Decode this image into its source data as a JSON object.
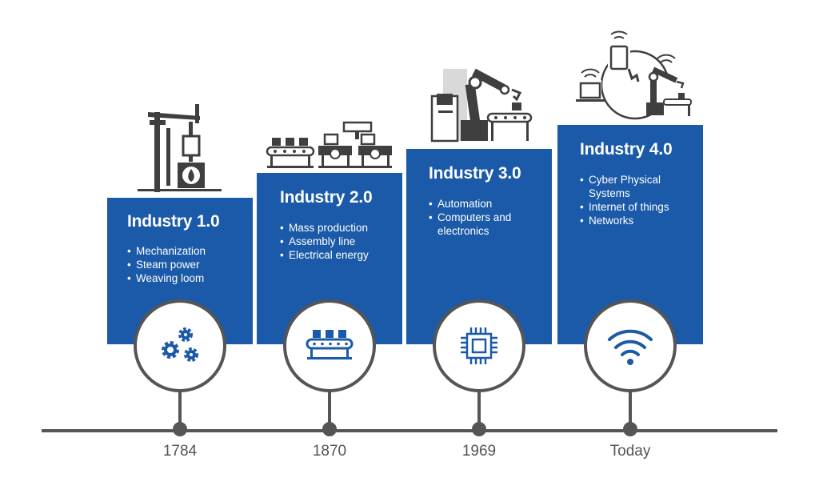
{
  "stages": [
    {
      "title": "Industry 1.0",
      "bullets": [
        "Mechanization",
        "Steam power",
        "Weaving loom"
      ],
      "year": "1784",
      "illustration": "steam-engine-illustration",
      "icon": "gears-icon"
    },
    {
      "title": "Industry 2.0",
      "bullets": [
        "Mass production",
        "Assembly line",
        "Electrical energy"
      ],
      "year": "1870",
      "illustration": "assembly-line-illustration",
      "icon": "conveyor-belt-icon"
    },
    {
      "title": "Industry 3.0",
      "bullets": [
        "Automation",
        "Computers and",
        "electronics"
      ],
      "year": "1969",
      "illustration": "robot-arm-computer-illustration",
      "icon": "microchip-icon"
    },
    {
      "title": "Industry 4.0",
      "bullets": [
        "Cyber Physical",
        "Systems",
        "Internet of things",
        "Networks"
      ],
      "year": "Today",
      "illustration": "connected-devices-illustration",
      "icon": "wifi-icon"
    }
  ],
  "colors": {
    "panel": "#1b5aa8",
    "icon_blue": "#1b5aa8",
    "line": "#555555",
    "dark": "#3f3f3f",
    "light_gray": "#d9d9d9"
  }
}
